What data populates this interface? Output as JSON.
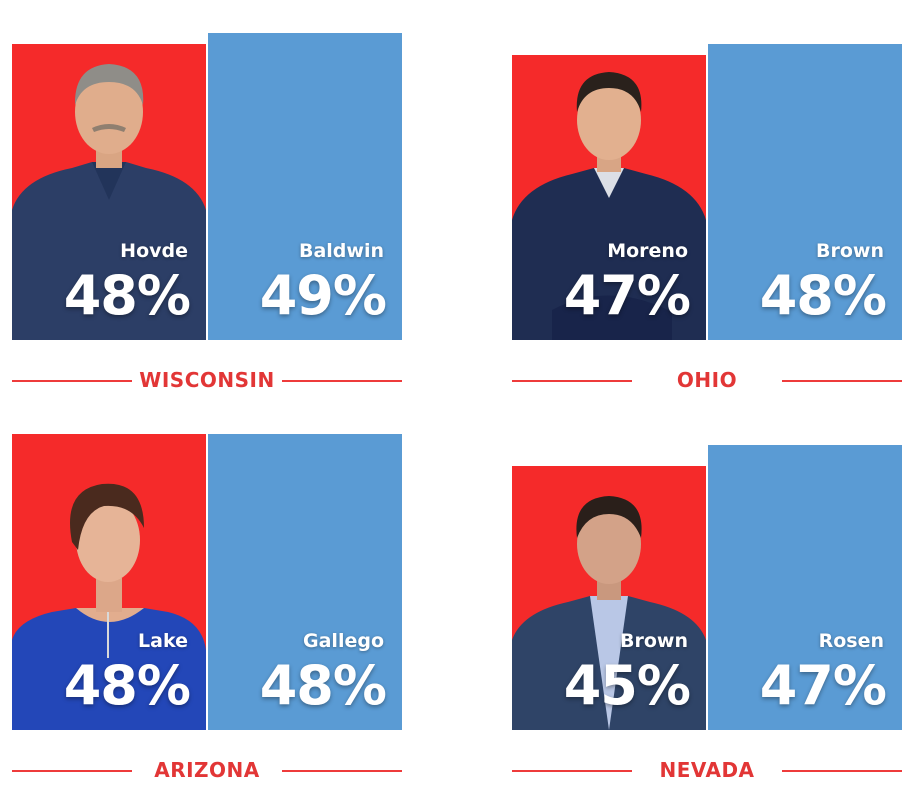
{
  "colors": {
    "republican": "#f52a2a",
    "democrat": "#5a9bd4",
    "state_label": "#e23636"
  },
  "chart_data": [
    {
      "type": "bar",
      "state": "WISCONSIN",
      "categories": [
        "Hovde",
        "Baldwin"
      ],
      "values": [
        48,
        49
      ],
      "labels": [
        "48%",
        "49%"
      ],
      "party": [
        "republican",
        "democrat"
      ],
      "photo_icon": "man-gray-hair-portrait"
    },
    {
      "type": "bar",
      "state": "OHIO",
      "categories": [
        "Moreno",
        "Brown"
      ],
      "values": [
        47,
        48
      ],
      "labels": [
        "47%",
        "48%"
      ],
      "party": [
        "republican",
        "democrat"
      ],
      "photo_icon": "man-dark-hair-portrait"
    },
    {
      "type": "bar",
      "state": "ARIZONA",
      "categories": [
        "Lake",
        "Gallego"
      ],
      "values": [
        48,
        48
      ],
      "labels": [
        "48%",
        "48%"
      ],
      "party": [
        "republican",
        "democrat"
      ],
      "photo_icon": "woman-short-hair-portrait"
    },
    {
      "type": "bar",
      "state": "NEVADA",
      "categories": [
        "Brown",
        "Rosen"
      ],
      "values": [
        45,
        47
      ],
      "labels": [
        "45%",
        "47%"
      ],
      "party": [
        "republican",
        "democrat"
      ],
      "photo_icon": "man-suit-portrait"
    }
  ]
}
